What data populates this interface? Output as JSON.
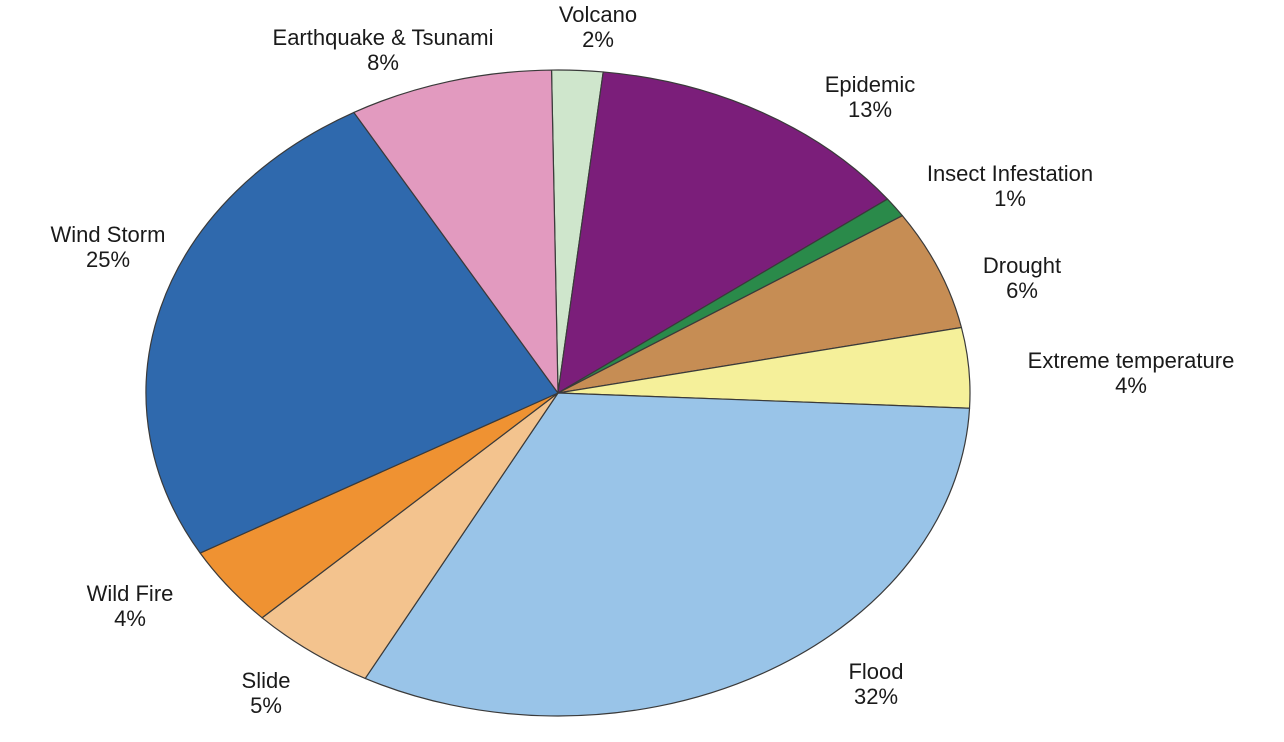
{
  "chart_data": {
    "type": "pie",
    "title": "",
    "slices": [
      {
        "label": "Volcano",
        "value": 2,
        "value_label": "2%",
        "color": "#cfe6cc"
      },
      {
        "label": "Epidemic",
        "value": 13,
        "value_label": "13%",
        "color": "#7b1e7a"
      },
      {
        "label": "Insect Infestation",
        "value": 1,
        "value_label": "1%",
        "color": "#2a8a4a"
      },
      {
        "label": "Drought",
        "value": 6,
        "value_label": "6%",
        "color": "#c68d54"
      },
      {
        "label": "Extreme temperature",
        "value": 4,
        "value_label": "4%",
        "color": "#f5f09a"
      },
      {
        "label": "Flood",
        "value": 32,
        "value_label": "32%",
        "color": "#99c4e8"
      },
      {
        "label": "Slide",
        "value": 5,
        "value_label": "5%",
        "color": "#f3c38e"
      },
      {
        "label": "Wild Fire",
        "value": 4,
        "value_label": "4%",
        "color": "#ef9232"
      },
      {
        "label": "Wind Storm",
        "value": 25,
        "value_label": "25%",
        "color": "#2f69ad"
      },
      {
        "label": "Earthquake & Tsunami",
        "value": 8,
        "value_label": "8%",
        "color": "#e29abf"
      }
    ],
    "legend": "none"
  }
}
